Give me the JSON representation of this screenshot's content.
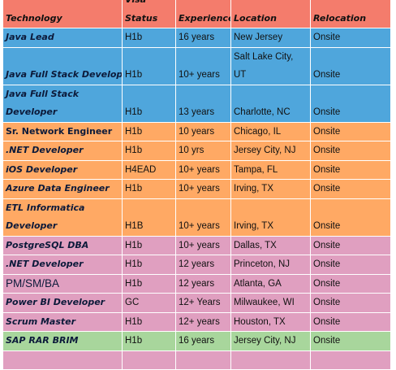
{
  "colors": {
    "header": "#f47c6c",
    "blue": "#4fa6dc",
    "orange": "#ffa964",
    "pink": "#e09fc0",
    "green": "#a8d69c"
  },
  "headers": {
    "technology": "Technology",
    "visa_line1": "Visa",
    "visa_line2": "Status",
    "experience": "Experience",
    "location": "Location",
    "relocation": "Relocation"
  },
  "rows": [
    {
      "tech": [
        "Java Lead"
      ],
      "visa": "H1b",
      "exp": "16 years",
      "loc": [
        "New Jersey"
      ],
      "reloc": "Onsite"
    },
    {
      "tech": [
        "Java Full Stack Developer"
      ],
      "visa": "H1b",
      "exp": "10+ years",
      "loc": [
        "Salt Lake City,",
        "UT"
      ],
      "reloc": "Onsite"
    },
    {
      "tech": [
        "Java Full Stack",
        "Developer"
      ],
      "visa": "H1b",
      "exp": "13 years",
      "loc": [
        "Charlotte, NC"
      ],
      "reloc": "Onsite"
    },
    {
      "tech": [
        "Sr. Network Engineer"
      ],
      "visa": "H1b",
      "exp": "10 years",
      "loc": [
        "Chicago, IL"
      ],
      "reloc": "Onsite"
    },
    {
      "tech": [
        ".NET Developer"
      ],
      "visa": "H1b",
      "exp": "10 yrs",
      "loc": [
        "Jersey City, NJ"
      ],
      "reloc": "Onsite"
    },
    {
      "tech": [
        "iOS Developer"
      ],
      "visa": "H4EAD",
      "exp": "10+ years",
      "loc": [
        "Tampa, FL"
      ],
      "reloc": "Onsite"
    },
    {
      "tech": [
        "Azure Data Engineer"
      ],
      "visa": "H1b",
      "exp": "10+ years",
      "loc": [
        "Irving, TX"
      ],
      "reloc": "Onsite"
    },
    {
      "tech": [
        "ETL Informatica",
        "Developer"
      ],
      "visa": "H1B",
      "exp": "10+ years",
      "loc": [
        "Irving, TX"
      ],
      "reloc": "Onsite"
    },
    {
      "tech": [
        "PostgreSQL DBA"
      ],
      "visa": "H1b",
      "exp": "10+ years",
      "loc": [
        "Dallas, TX"
      ],
      "reloc": "Onsite"
    },
    {
      "tech": [
        ".NET Developer"
      ],
      "visa": "H1b",
      "exp": "12 years",
      "loc": [
        "Princeton, NJ"
      ],
      "reloc": "Onsite"
    },
    {
      "tech": [
        "PM/SM/BA"
      ],
      "visa": "H1b",
      "exp": "12 years",
      "loc": [
        "Atlanta, GA"
      ],
      "reloc": "Onsite"
    },
    {
      "tech": [
        "Power BI Developer"
      ],
      "visa": "GC",
      "exp": "12+ Years",
      "loc": [
        "Milwaukee, WI"
      ],
      "reloc": "Onsite"
    },
    {
      "tech": [
        "Scrum Master"
      ],
      "visa": "H1b",
      "exp": "12+ years",
      "loc": [
        "Houston, TX"
      ],
      "reloc": "Onsite"
    },
    {
      "tech": [
        "SAP RAR BRIM"
      ],
      "visa": "H1b",
      "exp": "16 years",
      "loc": [
        "Jersey City, NJ"
      ],
      "reloc": "Onsite"
    },
    {
      "tech": [
        ""
      ],
      "visa": "",
      "exp": "",
      "loc": [
        ""
      ],
      "reloc": ""
    }
  ]
}
